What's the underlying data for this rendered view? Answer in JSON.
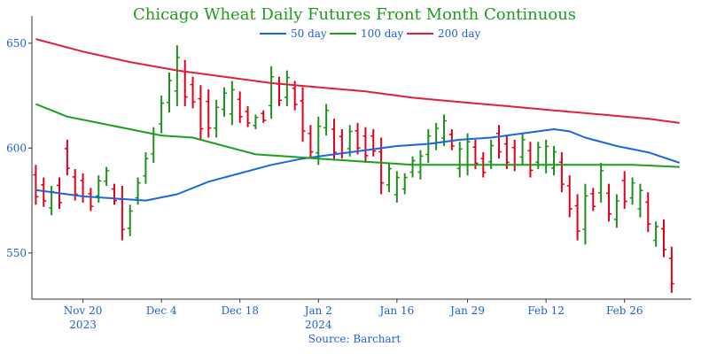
{
  "chart_data": {
    "type": "line",
    "title": "Chicago Wheat Daily Futures Front Month Continuous",
    "source": "Source: Barchart",
    "xlabel": "",
    "ylabel": "",
    "ylim": [
      528,
      663
    ],
    "grid": false,
    "legend_position": "top",
    "yticks": [
      550,
      600,
      650
    ],
    "xticks": [
      {
        "x": 6,
        "label": "Nov 20",
        "year": "2023"
      },
      {
        "x": 16,
        "label": "Dec 4",
        "year": ""
      },
      {
        "x": 26,
        "label": "Dec 18",
        "year": ""
      },
      {
        "x": 36,
        "label": "Jan 2",
        "year": "2024"
      },
      {
        "x": 46,
        "label": "Jan 16",
        "year": ""
      },
      {
        "x": 55,
        "label": "Jan 29",
        "year": ""
      },
      {
        "x": 65,
        "label": "Feb 12",
        "year": ""
      },
      {
        "x": 75,
        "label": "Feb 26",
        "year": ""
      }
    ],
    "x_range": [
      -0.5,
      83.5
    ],
    "colors": {
      "up": "#1f8f1f",
      "down": "#e0001b",
      "ma50": "#1a66e0",
      "ma100": "#18a018",
      "ma200": "#e0203a"
    },
    "series": [
      {
        "name": "50 day",
        "values": [
          [
            0,
            580
          ],
          [
            6,
            577
          ],
          [
            10,
            576
          ],
          [
            14,
            575
          ],
          [
            18,
            578
          ],
          [
            22,
            584
          ],
          [
            26,
            588
          ],
          [
            30,
            592
          ],
          [
            34,
            595
          ],
          [
            38,
            597
          ],
          [
            42,
            599
          ],
          [
            46,
            601
          ],
          [
            50,
            602
          ],
          [
            54,
            604
          ],
          [
            58,
            605
          ],
          [
            62,
            607
          ],
          [
            66,
            609
          ],
          [
            68,
            608
          ],
          [
            70,
            605
          ],
          [
            74,
            601
          ],
          [
            78,
            598
          ],
          [
            82,
            593
          ]
        ]
      },
      {
        "name": "100 day",
        "values": [
          [
            0,
            621
          ],
          [
            4,
            615
          ],
          [
            8,
            612
          ],
          [
            12,
            609
          ],
          [
            16,
            606
          ],
          [
            20,
            605
          ],
          [
            24,
            601
          ],
          [
            28,
            597
          ],
          [
            32,
            596
          ],
          [
            36,
            595
          ],
          [
            40,
            594
          ],
          [
            44,
            593
          ],
          [
            48,
            592
          ],
          [
            52,
            592
          ],
          [
            56,
            592
          ],
          [
            60,
            592
          ],
          [
            64,
            592
          ],
          [
            68,
            592
          ],
          [
            72,
            592
          ],
          [
            76,
            592
          ],
          [
            82,
            591
          ]
        ]
      },
      {
        "name": "200 day",
        "values": [
          [
            0,
            652
          ],
          [
            6,
            646
          ],
          [
            12,
            641
          ],
          [
            18,
            637
          ],
          [
            24,
            634
          ],
          [
            30,
            631
          ],
          [
            36,
            629
          ],
          [
            42,
            627
          ],
          [
            48,
            624
          ],
          [
            54,
            622
          ],
          [
            60,
            620
          ],
          [
            66,
            618
          ],
          [
            72,
            616
          ],
          [
            78,
            614
          ],
          [
            82,
            612
          ]
        ]
      }
    ],
    "ohlc_bars": [
      {
        "x": 0,
        "high": 592,
        "low": 573,
        "dir": "down"
      },
      {
        "x": 1,
        "high": 586,
        "low": 572,
        "dir": "down"
      },
      {
        "x": 2,
        "high": 582,
        "low": 568,
        "dir": "up"
      },
      {
        "x": 3,
        "high": 586,
        "low": 571,
        "dir": "down"
      },
      {
        "x": 4,
        "high": 604,
        "low": 587,
        "dir": "down"
      },
      {
        "x": 5,
        "high": 590,
        "low": 575,
        "dir": "down"
      },
      {
        "x": 6,
        "high": 588,
        "low": 574,
        "dir": "down"
      },
      {
        "x": 7,
        "high": 581,
        "low": 570,
        "dir": "down"
      },
      {
        "x": 8,
        "high": 587,
        "low": 574,
        "dir": "up"
      },
      {
        "x": 9,
        "high": 591,
        "low": 582,
        "dir": "up"
      },
      {
        "x": 10,
        "high": 583,
        "low": 573,
        "dir": "down"
      },
      {
        "x": 11,
        "high": 582,
        "low": 556,
        "dir": "down"
      },
      {
        "x": 12,
        "high": 573,
        "low": 558,
        "dir": "up"
      },
      {
        "x": 13,
        "high": 586,
        "low": 573,
        "dir": "up"
      },
      {
        "x": 14,
        "high": 598,
        "low": 583,
        "dir": "up"
      },
      {
        "x": 15,
        "high": 610,
        "low": 593,
        "dir": "up"
      },
      {
        "x": 16,
        "high": 625,
        "low": 607,
        "dir": "up"
      },
      {
        "x": 17,
        "high": 636,
        "low": 617,
        "dir": "up"
      },
      {
        "x": 18,
        "high": 649,
        "low": 620,
        "dir": "up"
      },
      {
        "x": 19,
        "high": 642,
        "low": 620,
        "dir": "down"
      },
      {
        "x": 20,
        "high": 634,
        "low": 619,
        "dir": "down"
      },
      {
        "x": 21,
        "high": 630,
        "low": 604,
        "dir": "down"
      },
      {
        "x": 22,
        "high": 628,
        "low": 605,
        "dir": "down"
      },
      {
        "x": 23,
        "high": 623,
        "low": 605,
        "dir": "up"
      },
      {
        "x": 24,
        "high": 629,
        "low": 615,
        "dir": "up"
      },
      {
        "x": 25,
        "high": 632,
        "low": 611,
        "dir": "up"
      },
      {
        "x": 26,
        "high": 627,
        "low": 612,
        "dir": "down"
      },
      {
        "x": 27,
        "high": 620,
        "low": 610,
        "dir": "down"
      },
      {
        "x": 28,
        "high": 616,
        "low": 609,
        "dir": "up"
      },
      {
        "x": 29,
        "high": 618,
        "low": 612,
        "dir": "down"
      },
      {
        "x": 30,
        "high": 639,
        "low": 614,
        "dir": "up"
      },
      {
        "x": 31,
        "high": 634,
        "low": 620,
        "dir": "down"
      },
      {
        "x": 32,
        "high": 637,
        "low": 620,
        "dir": "up"
      },
      {
        "x": 33,
        "high": 632,
        "low": 618,
        "dir": "down"
      },
      {
        "x": 34,
        "high": 629,
        "low": 603,
        "dir": "down"
      },
      {
        "x": 35,
        "high": 611,
        "low": 595,
        "dir": "down"
      },
      {
        "x": 36,
        "high": 615,
        "low": 592,
        "dir": "up"
      },
      {
        "x": 37,
        "high": 621,
        "low": 606,
        "dir": "up"
      },
      {
        "x": 38,
        "high": 614,
        "low": 594,
        "dir": "down"
      },
      {
        "x": 39,
        "high": 609,
        "low": 595,
        "dir": "down"
      },
      {
        "x": 40,
        "high": 611,
        "low": 596,
        "dir": "up"
      },
      {
        "x": 41,
        "high": 612,
        "low": 597,
        "dir": "down"
      },
      {
        "x": 42,
        "high": 610,
        "low": 593,
        "dir": "down"
      },
      {
        "x": 43,
        "high": 609,
        "low": 596,
        "dir": "down"
      },
      {
        "x": 44,
        "high": 605,
        "low": 578,
        "dir": "down"
      },
      {
        "x": 45,
        "high": 593,
        "low": 579,
        "dir": "up"
      },
      {
        "x": 46,
        "high": 589,
        "low": 574,
        "dir": "up"
      },
      {
        "x": 47,
        "high": 588,
        "low": 578,
        "dir": "up"
      },
      {
        "x": 48,
        "high": 596,
        "low": 586,
        "dir": "up"
      },
      {
        "x": 49,
        "high": 599,
        "low": 585,
        "dir": "up"
      },
      {
        "x": 50,
        "high": 609,
        "low": 593,
        "dir": "up"
      },
      {
        "x": 51,
        "high": 612,
        "low": 599,
        "dir": "up"
      },
      {
        "x": 52,
        "high": 616,
        "low": 601,
        "dir": "up"
      },
      {
        "x": 53,
        "high": 609,
        "low": 599,
        "dir": "down"
      },
      {
        "x": 54,
        "high": 603,
        "low": 586,
        "dir": "up"
      },
      {
        "x": 55,
        "high": 607,
        "low": 587,
        "dir": "up"
      },
      {
        "x": 56,
        "high": 604,
        "low": 590,
        "dir": "down"
      },
      {
        "x": 57,
        "high": 598,
        "low": 586,
        "dir": "down"
      },
      {
        "x": 58,
        "high": 604,
        "low": 590,
        "dir": "up"
      },
      {
        "x": 59,
        "high": 611,
        "low": 595,
        "dir": "down"
      },
      {
        "x": 60,
        "high": 606,
        "low": 590,
        "dir": "down"
      },
      {
        "x": 61,
        "high": 604,
        "low": 589,
        "dir": "down"
      },
      {
        "x": 62,
        "high": 607,
        "low": 592,
        "dir": "up"
      },
      {
        "x": 63,
        "high": 603,
        "low": 586,
        "dir": "down"
      },
      {
        "x": 64,
        "high": 603,
        "low": 590,
        "dir": "up"
      },
      {
        "x": 65,
        "high": 604,
        "low": 588,
        "dir": "up"
      },
      {
        "x": 66,
        "high": 601,
        "low": 587,
        "dir": "up"
      },
      {
        "x": 67,
        "high": 598,
        "low": 579,
        "dir": "down"
      },
      {
        "x": 68,
        "high": 587,
        "low": 567,
        "dir": "down"
      },
      {
        "x": 69,
        "high": 578,
        "low": 556,
        "dir": "down"
      },
      {
        "x": 70,
        "high": 583,
        "low": 554,
        "dir": "up"
      },
      {
        "x": 71,
        "high": 581,
        "low": 570,
        "dir": "down"
      },
      {
        "x": 72,
        "high": 593,
        "low": 574,
        "dir": "up"
      },
      {
        "x": 73,
        "high": 583,
        "low": 565,
        "dir": "down"
      },
      {
        "x": 74,
        "high": 578,
        "low": 562,
        "dir": "up"
      },
      {
        "x": 75,
        "high": 589,
        "low": 571,
        "dir": "down"
      },
      {
        "x": 76,
        "high": 586,
        "low": 573,
        "dir": "up"
      },
      {
        "x": 77,
        "high": 583,
        "low": 567,
        "dir": "up"
      },
      {
        "x": 78,
        "high": 579,
        "low": 560,
        "dir": "down"
      },
      {
        "x": 79,
        "high": 565,
        "low": 553,
        "dir": "up"
      },
      {
        "x": 80,
        "high": 566,
        "low": 548,
        "dir": "down"
      },
      {
        "x": 81,
        "high": 553,
        "low": 531,
        "dir": "down"
      }
    ]
  }
}
